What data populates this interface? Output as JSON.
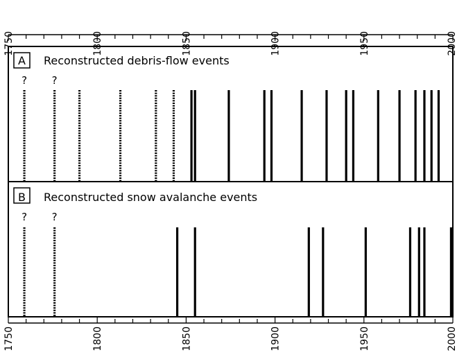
{
  "chart_data": {
    "type": "event_timeline",
    "x_axis": {
      "range": [
        1750,
        2000
      ],
      "tick_labels": [
        "1750",
        "1800",
        "1850",
        "1900",
        "1950",
        "2000"
      ],
      "major_step": 50,
      "minor_step": 10,
      "tick_label_rotation": "vertical"
    },
    "panels": [
      {
        "letter": "A",
        "title": "Reconstructed debris-flow events",
        "uncertainty_mark": "?",
        "events_uncertain": [
          1759,
          1776
        ],
        "events_dotted": [
          1759,
          1776,
          1790,
          1813,
          1833,
          1843
        ],
        "events_solid": [
          1853,
          1855,
          1874,
          1894,
          1898,
          1915,
          1929,
          1940,
          1944,
          1958,
          1970,
          1979,
          1984,
          1988,
          1992
        ]
      },
      {
        "letter": "B",
        "title": "Reconstructed snow avalanche events",
        "uncertainty_mark": "?",
        "events_uncertain": [
          1759,
          1776
        ],
        "events_dotted": [
          1759,
          1776
        ],
        "events_solid": [
          1845,
          1855,
          1919,
          1927,
          1951,
          1976,
          1981,
          1984,
          1999
        ]
      }
    ]
  }
}
